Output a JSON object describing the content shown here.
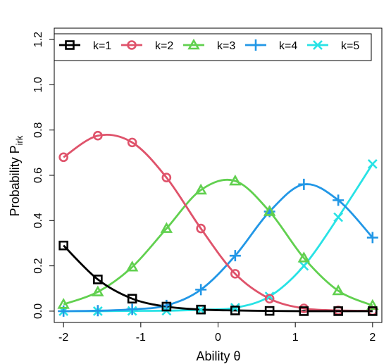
{
  "chart_data": {
    "type": "line",
    "title": "",
    "xlabel": "Ability θ",
    "ylabel_main": "Probability P",
    "ylabel_sub": "irk",
    "xlim": [
      -2.12,
      2.12
    ],
    "ylim": [
      -0.05,
      1.25
    ],
    "xticks": [
      -2,
      -1,
      0,
      1,
      2
    ],
    "xtick_labels": [
      "-2",
      "-1",
      "0",
      "1",
      "2"
    ],
    "yticks": [
      0.0,
      0.2,
      0.4,
      0.6,
      0.8,
      1.0,
      1.2
    ],
    "ytick_labels": [
      "0.0",
      "0.2",
      "0.4",
      "0.6",
      "0.8",
      "1.0",
      "1.2"
    ],
    "grid": false,
    "legend_position": "top",
    "x": [
      -2.0,
      -1.556,
      -1.111,
      -0.667,
      -0.222,
      0.222,
      0.667,
      1.111,
      1.556,
      2.0
    ],
    "series": [
      {
        "name": "k=1",
        "color": "#000000",
        "marker": "square",
        "values": [
          0.29,
          0.14,
          0.055,
          0.02,
          0.007,
          0.003,
          0.001,
          0.0,
          0.0,
          0.0
        ]
      },
      {
        "name": "k=2",
        "color": "#DF536B",
        "marker": "circle",
        "values": [
          0.68,
          0.775,
          0.745,
          0.59,
          0.365,
          0.165,
          0.055,
          0.012,
          0.003,
          0.001
        ]
      },
      {
        "name": "k=3",
        "color": "#61D04F",
        "marker": "triangle",
        "values": [
          0.03,
          0.085,
          0.195,
          0.365,
          0.535,
          0.575,
          0.44,
          0.235,
          0.09,
          0.025
        ]
      },
      {
        "name": "k=4",
        "color": "#2297E6",
        "marker": "plus",
        "values": [
          0.0,
          0.002,
          0.008,
          0.025,
          0.095,
          0.245,
          0.44,
          0.56,
          0.49,
          0.325
        ]
      },
      {
        "name": "k=5",
        "color": "#28E2E5",
        "marker": "cross",
        "values": [
          0.0,
          0.0,
          0.001,
          0.002,
          0.006,
          0.015,
          0.065,
          0.2,
          0.415,
          0.65
        ]
      }
    ]
  }
}
